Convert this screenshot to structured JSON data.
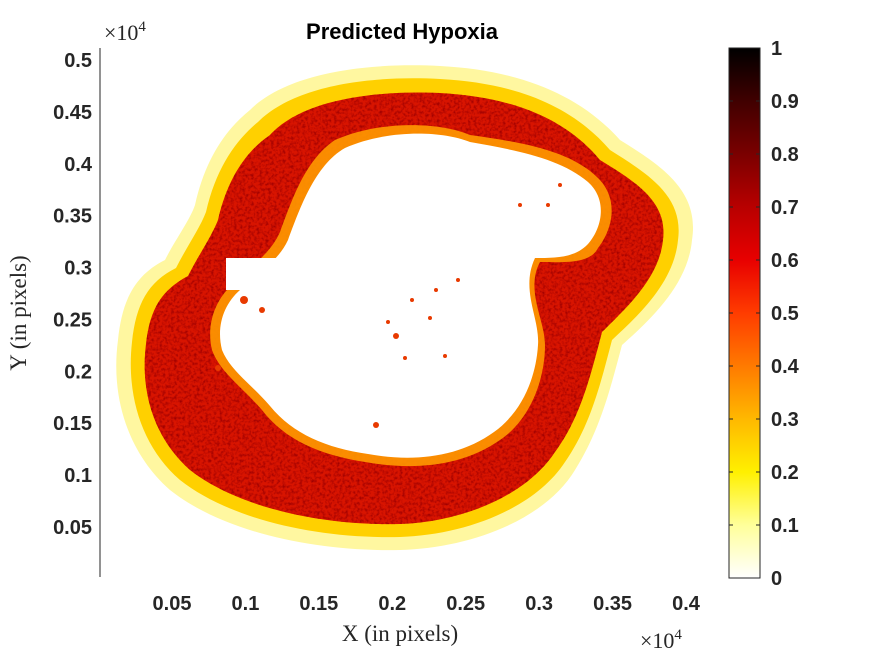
{
  "chart_data": {
    "type": "heatmap",
    "title": "Predicted Hypoxia",
    "xlabel": "X (in pixels)",
    "ylabel": "Y (in pixels)",
    "x_multiplier": "×10",
    "y_multiplier": "×10",
    "multiplier_exponent": "4",
    "x_ticks": [
      0.05,
      0.1,
      0.15,
      0.2,
      0.25,
      0.3,
      0.35,
      0.4
    ],
    "x_tick_labels": [
      "0.05",
      "0.1",
      "0.15",
      "0.2",
      "0.25",
      "0.3",
      "0.35",
      "0.4"
    ],
    "y_ticks": [
      0.05,
      0.1,
      0.15,
      0.2,
      0.25,
      0.3,
      0.35,
      0.4,
      0.45,
      0.5
    ],
    "y_tick_labels": [
      "0.05",
      "0.1",
      "0.15",
      "0.2",
      "0.25",
      "0.3",
      "0.35",
      "0.4",
      "0.45",
      "0.5"
    ],
    "xlim": [
      0,
      0.42
    ],
    "ylim": [
      0,
      0.5
    ],
    "grid": false,
    "colormap": "hot (reversed)",
    "colorbar": {
      "ticks": [
        0,
        0.1,
        0.2,
        0.3,
        0.4,
        0.5,
        0.6,
        0.7,
        0.8,
        0.9,
        1
      ],
      "tick_labels": [
        "0",
        "0.1",
        "0.2",
        "0.3",
        "0.4",
        "0.5",
        "0.6",
        "0.7",
        "0.8",
        "0.9",
        "1"
      ],
      "clim": [
        0,
        1
      ],
      "colors": [
        "#ffffff",
        "#ffff9a",
        "#fff000",
        "#ffb800",
        "#ff7a00",
        "#ff3c00",
        "#e80000",
        "#b80000",
        "#7a0000",
        "#400000",
        "#000000"
      ]
    },
    "regions": [
      {
        "name": "outer rim",
        "shape": "ring",
        "typical_value": 0.15
      },
      {
        "name": "hypoxic band",
        "shape": "ring",
        "typical_value": 0.7
      },
      {
        "name": "necrotic core",
        "shape": "interior",
        "typical_value": 0.0
      }
    ]
  }
}
